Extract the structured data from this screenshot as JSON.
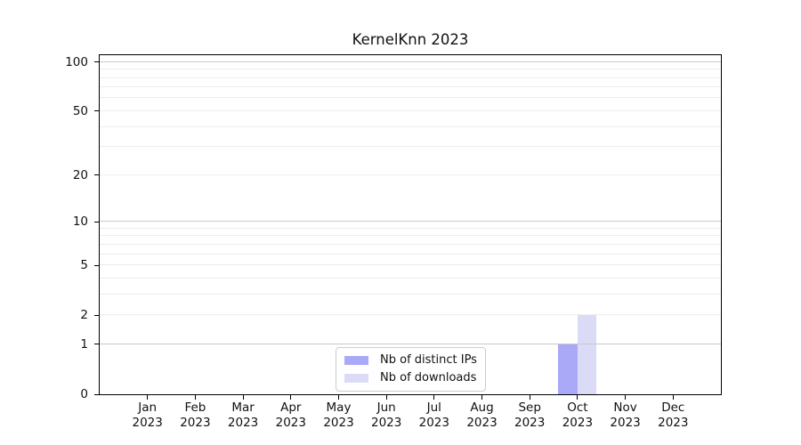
{
  "chart_data": {
    "type": "bar",
    "title": "KernelKnn 2023",
    "categories": [
      "Jan 2023",
      "Feb 2023",
      "Mar 2023",
      "Apr 2023",
      "May 2023",
      "Jun 2023",
      "Jul 2023",
      "Aug 2023",
      "Sep 2023",
      "Oct 2023",
      "Nov 2023",
      "Dec 2023"
    ],
    "series": [
      {
        "name": "Nb of distinct IPs",
        "color": "#a9a9f7",
        "values": [
          0,
          0,
          0,
          0,
          0,
          0,
          0,
          0,
          0,
          1,
          0,
          0
        ]
      },
      {
        "name": "Nb of downloads",
        "color": "#dbdbf8",
        "values": [
          0,
          0,
          0,
          0,
          0,
          0,
          0,
          0,
          0,
          2,
          0,
          0
        ]
      }
    ],
    "xlabel": "",
    "ylabel": "",
    "yscale": "log1p",
    "ylim": [
      0,
      110
    ],
    "yticks": [
      0,
      1,
      2,
      5,
      10,
      20,
      50,
      100
    ],
    "gridlines_major": [
      1,
      10,
      100
    ],
    "gridlines_minor": [
      2,
      3,
      4,
      5,
      6,
      7,
      8,
      9,
      20,
      30,
      40,
      50,
      60,
      70,
      80,
      90
    ],
    "grid": "horizontal",
    "legend_position": "lower center"
  }
}
